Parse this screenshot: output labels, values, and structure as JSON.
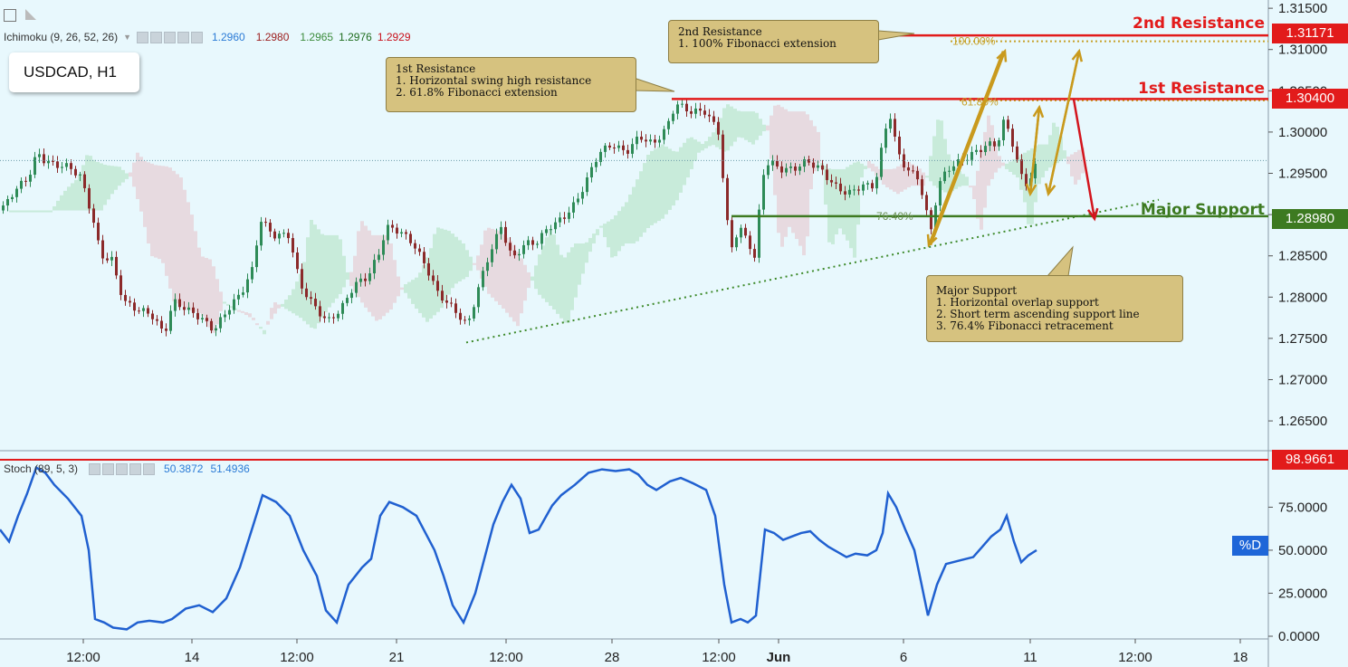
{
  "symbol": "USDCAD, H1",
  "ichimoku": {
    "name": "Ichimoku (9, 26, 52, 26)",
    "values": [
      {
        "v": "1.2960",
        "color": "#2b7bd6"
      },
      {
        "v": "1.2980",
        "color": "#9b1c1c"
      },
      {
        "v": "1.2965",
        "color": "#3c8c3c"
      },
      {
        "v": "1.2976",
        "color": "#1f6d1f"
      },
      {
        "v": "1.2929",
        "color": "#c9101b"
      }
    ]
  },
  "stoch": {
    "name": "Stoch (89, 5, 3)",
    "values": [
      {
        "v": "50.3872",
        "color": "#2b7bd6"
      },
      {
        "v": "51.4936",
        "color": "#2b7bd6"
      }
    ],
    "pd_label": "%D"
  },
  "levels": {
    "second_resistance": {
      "label": "2nd Resistance",
      "price": "1.31171",
      "value": 1.31171
    },
    "first_resistance": {
      "label": "1st Resistance",
      "price": "1.30400",
      "value": 1.304
    },
    "major_support": {
      "label": "Major Support",
      "price": "1.28980",
      "value": 1.2898
    },
    "stoch_level": {
      "price": "98.9661",
      "value": 98.9661
    }
  },
  "fib_labels": {
    "f100": "100.00%",
    "f618": "61.80%",
    "f764": "76.40%"
  },
  "callouts": {
    "second_resistance": {
      "title": "2nd Resistance",
      "lines": [
        "1. 100% Fibonacci extension"
      ]
    },
    "first_resistance": {
      "title": "1st Resistance",
      "lines": [
        "1. Horizontal swing high resistance",
        "2. 61.8% Fibonacci extension"
      ]
    },
    "major_support": {
      "title": "Major Support",
      "lines": [
        "1. Horizontal overlap support",
        "2. Short term ascending support line",
        "3. 76.4% Fibonacci retracement"
      ]
    }
  },
  "colors": {
    "background": "#e8f8fd",
    "up_candle": "#2e8b57",
    "down_candle": "#8b2a2a",
    "resistance": "#e21b1b",
    "support": "#3d7a21",
    "fib": "#c7a22a",
    "arrow_gold": "#c99a1d",
    "arrow_red": "#d3151d",
    "stoch_line": "#2060d0"
  },
  "chart_data": [
    {
      "type": "candlestick",
      "title": "USDCAD, H1",
      "ylim": [
        1.2615,
        1.316
      ],
      "yticks": [
        "1.31500",
        "1.31000",
        "1.30500",
        "1.30000",
        "1.29500",
        "1.29000",
        "1.28500",
        "1.28000",
        "1.27500",
        "1.27000",
        "1.26500"
      ],
      "xticks": [
        "12:00",
        "14",
        "12:00",
        "21",
        "12:00",
        "28",
        "12:00",
        "Jun",
        "6",
        "11",
        "12:00",
        "18"
      ],
      "close_path": [
        [
          0,
          1.2905
        ],
        [
          12,
          1.2925
        ],
        [
          20,
          1.2935
        ],
        [
          30,
          1.2945
        ],
        [
          40,
          1.2975
        ],
        [
          48,
          1.2965
        ],
        [
          60,
          1.296
        ],
        [
          75,
          1.2958
        ],
        [
          88,
          1.2945
        ],
        [
          100,
          1.29
        ],
        [
          110,
          1.285
        ],
        [
          122,
          1.2845
        ],
        [
          135,
          1.2795
        ],
        [
          150,
          1.2785
        ],
        [
          165,
          1.278
        ],
        [
          180,
          1.2755
        ],
        [
          190,
          1.2795
        ],
        [
          205,
          1.2785
        ],
        [
          220,
          1.2775
        ],
        [
          235,
          1.276
        ],
        [
          250,
          1.2785
        ],
        [
          265,
          1.2805
        ],
        [
          278,
          1.2835
        ],
        [
          286,
          1.2895
        ],
        [
          300,
          1.2875
        ],
        [
          318,
          1.2875
        ],
        [
          330,
          1.2815
        ],
        [
          345,
          1.279
        ],
        [
          360,
          1.277
        ],
        [
          375,
          1.2785
        ],
        [
          390,
          1.2815
        ],
        [
          405,
          1.2825
        ],
        [
          418,
          1.2855
        ],
        [
          425,
          1.2885
        ],
        [
          440,
          1.288
        ],
        [
          455,
          1.2865
        ],
        [
          470,
          1.2835
        ],
        [
          482,
          1.2805
        ],
        [
          500,
          1.2785
        ],
        [
          515,
          1.2765
        ],
        [
          528,
          1.2815
        ],
        [
          540,
          1.2855
        ],
        [
          552,
          1.2885
        ],
        [
          565,
          1.2845
        ],
        [
          578,
          1.2865
        ],
        [
          590,
          1.2865
        ],
        [
          605,
          1.2885
        ],
        [
          620,
          1.2895
        ],
        [
          635,
          1.2915
        ],
        [
          648,
          1.2945
        ],
        [
          660,
          1.2975
        ],
        [
          675,
          1.2985
        ],
        [
          690,
          1.2975
        ],
        [
          705,
          1.2995
        ],
        [
          720,
          1.2985
        ],
        [
          735,
          1.3005
        ],
        [
          745,
          1.3035
        ],
        [
          760,
          1.3025
        ],
        [
          778,
          1.3025
        ],
        [
          792,
          1.3
        ],
        [
          798,
          1.2935
        ],
        [
          805,
          1.2855
        ],
        [
          815,
          1.2885
        ],
        [
          826,
          1.2865
        ],
        [
          833,
          1.2845
        ],
        [
          840,
          1.2945
        ],
        [
          848,
          1.2965
        ],
        [
          860,
          1.2955
        ],
        [
          875,
          1.2955
        ],
        [
          890,
          1.2965
        ],
        [
          905,
          1.2955
        ],
        [
          920,
          1.2935
        ],
        [
          935,
          1.2925
        ],
        [
          950,
          1.2935
        ],
        [
          965,
          1.2935
        ],
        [
          975,
          1.2995
        ],
        [
          981,
          1.3025
        ],
        [
          990,
          1.2975
        ],
        [
          1000,
          1.2955
        ],
        [
          1012,
          1.2945
        ],
        [
          1020,
          1.2915
        ],
        [
          1026,
          1.2875
        ],
        [
          1035,
          1.2935
        ],
        [
          1045,
          1.2955
        ],
        [
          1060,
          1.2965
        ],
        [
          1075,
          1.2975
        ],
        [
          1090,
          1.2985
        ],
        [
          1100,
          1.2985
        ],
        [
          1108,
          1.3015
        ],
        [
          1115,
          1.2995
        ],
        [
          1122,
          1.2965
        ],
        [
          1130,
          1.2935
        ],
        [
          1137,
          1.2945
        ],
        [
          1145,
          1.2965
        ]
      ],
      "swing_points": {
        "high": 1.3045,
        "low": 1.2735
      }
    },
    {
      "type": "line",
      "title": "Stoch (89, 5, 3)",
      "ylim": [
        0,
        100
      ],
      "yticks": [
        "75.0000",
        "50.0000",
        "25.0000",
        "0.0000"
      ],
      "series": [
        {
          "name": "%D",
          "points": [
            [
              0,
              62
            ],
            [
              10,
              55
            ],
            [
              20,
              70
            ],
            [
              30,
              83
            ],
            [
              40,
              98
            ],
            [
              50,
              95
            ],
            [
              60,
              88
            ],
            [
              75,
              80
            ],
            [
              90,
              70
            ],
            [
              98,
              50
            ],
            [
              105,
              10
            ],
            [
              115,
              8
            ],
            [
              125,
              5
            ],
            [
              140,
              4
            ],
            [
              152,
              8
            ],
            [
              165,
              9
            ],
            [
              180,
              8
            ],
            [
              190,
              10
            ],
            [
              205,
              16
            ],
            [
              220,
              18
            ],
            [
              235,
              14
            ],
            [
              250,
              22
            ],
            [
              265,
              40
            ],
            [
              280,
              65
            ],
            [
              290,
              82
            ],
            [
              305,
              78
            ],
            [
              320,
              70
            ],
            [
              335,
              50
            ],
            [
              350,
              35
            ],
            [
              360,
              15
            ],
            [
              372,
              8
            ],
            [
              385,
              30
            ],
            [
              400,
              40
            ],
            [
              410,
              45
            ],
            [
              420,
              70
            ],
            [
              430,
              78
            ],
            [
              445,
              75
            ],
            [
              460,
              70
            ],
            [
              470,
              60
            ],
            [
              480,
              50
            ],
            [
              490,
              35
            ],
            [
              500,
              18
            ],
            [
              512,
              8
            ],
            [
              525,
              25
            ],
            [
              535,
              45
            ],
            [
              545,
              65
            ],
            [
              555,
              78
            ],
            [
              565,
              88
            ],
            [
              575,
              80
            ],
            [
              585,
              60
            ],
            [
              595,
              62
            ],
            [
              610,
              76
            ],
            [
              620,
              82
            ],
            [
              635,
              88
            ],
            [
              650,
              95
            ],
            [
              665,
              97
            ],
            [
              680,
              96
            ],
            [
              695,
              97
            ],
            [
              705,
              94
            ],
            [
              715,
              88
            ],
            [
              725,
              85
            ],
            [
              740,
              90
            ],
            [
              752,
              92
            ],
            [
              765,
              89
            ],
            [
              780,
              85
            ],
            [
              790,
              70
            ],
            [
              800,
              30
            ],
            [
              808,
              8
            ],
            [
              818,
              10
            ],
            [
              826,
              8
            ],
            [
              835,
              12
            ],
            [
              845,
              62
            ],
            [
              855,
              60
            ],
            [
              865,
              56
            ],
            [
              875,
              58
            ],
            [
              885,
              60
            ],
            [
              895,
              61
            ],
            [
              905,
              56
            ],
            [
              915,
              52
            ],
            [
              925,
              49
            ],
            [
              935,
              46
            ],
            [
              945,
              48
            ],
            [
              958,
              47
            ],
            [
              968,
              50
            ],
            [
              975,
              60
            ],
            [
              981,
              83
            ],
            [
              990,
              75
            ],
            [
              1000,
              62
            ],
            [
              1010,
              50
            ],
            [
              1018,
              30
            ],
            [
              1025,
              12
            ],
            [
              1035,
              30
            ],
            [
              1045,
              42
            ],
            [
              1060,
              44
            ],
            [
              1075,
              46
            ],
            [
              1085,
              52
            ],
            [
              1095,
              58
            ],
            [
              1105,
              62
            ],
            [
              1112,
              70
            ],
            [
              1120,
              55
            ],
            [
              1128,
              43
            ],
            [
              1136,
              47
            ],
            [
              1145,
              50
            ]
          ]
        }
      ]
    }
  ]
}
